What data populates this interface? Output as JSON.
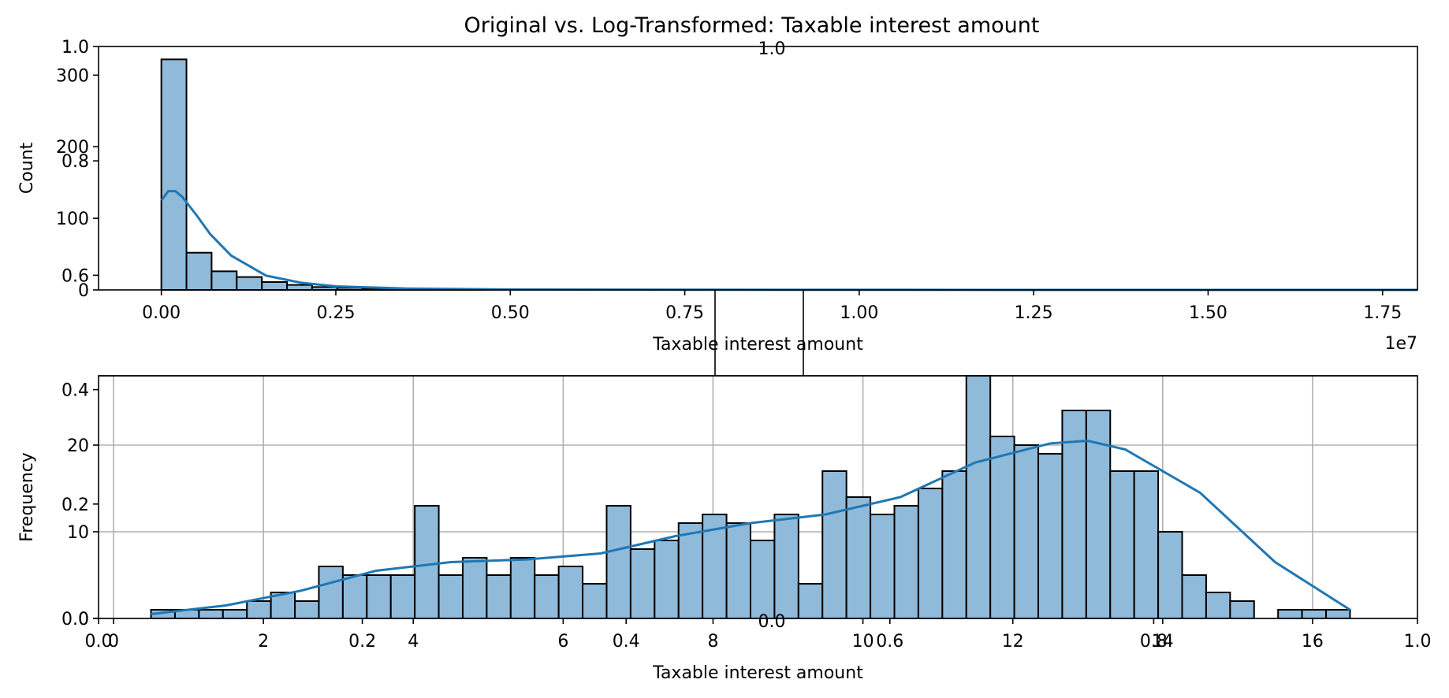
{
  "chart_data": [
    {
      "type": "bar",
      "panel": "top",
      "title": "Original vs. Log-Transformed: Taxable interest amount",
      "xlabel": "Taxable interest amount",
      "ylabel": "Count",
      "x_offset_label": "1e7",
      "xlim": [
        -0.09,
        1.8
      ],
      "ylim": [
        0,
        340
      ],
      "x_ticks": [
        0.0,
        0.25,
        0.5,
        0.75,
        1.0,
        1.25,
        1.5,
        1.75
      ],
      "x_tick_labels": [
        "0.00",
        "0.25",
        "0.50",
        "0.75",
        "1.00",
        "1.25",
        "1.50",
        "1.75"
      ],
      "y_ticks": [
        0,
        100,
        200,
        300
      ],
      "y_tick_labels": [
        "0",
        "100",
        "200",
        "300"
      ],
      "bin_edges": [
        0.0,
        0.036,
        0.072,
        0.108,
        0.144,
        0.18,
        0.216,
        0.252,
        0.288,
        0.324,
        0.36,
        0.396,
        0.432,
        0.468,
        0.504,
        0.54,
        0.576,
        0.612,
        0.648,
        0.684,
        0.72,
        0.756,
        0.792,
        0.828,
        0.864,
        0.9,
        0.936,
        0.972,
        1.008,
        1.044,
        1.08,
        1.116,
        1.152,
        1.188,
        1.224,
        1.26,
        1.296,
        1.332,
        1.368,
        1.404,
        1.44,
        1.476,
        1.512,
        1.548,
        1.584,
        1.62,
        1.656,
        1.692,
        1.728,
        1.764,
        1.8
      ],
      "values": [
        322,
        52,
        26,
        18,
        11,
        7,
        4,
        3,
        2,
        2,
        1,
        1,
        1,
        1,
        0,
        0,
        0,
        0,
        0,
        0,
        0,
        0,
        0,
        0,
        0,
        0,
        0,
        0,
        0,
        0,
        0,
        0,
        0,
        0,
        0,
        0,
        0,
        0,
        0,
        0,
        0,
        0,
        0,
        0,
        0,
        0,
        0,
        0,
        0,
        0
      ],
      "kde": {
        "x": [
          0.0,
          0.01,
          0.02,
          0.03,
          0.05,
          0.07,
          0.1,
          0.15,
          0.2,
          0.25,
          0.35,
          0.5,
          0.75,
          1.0,
          1.25,
          1.5,
          1.8
        ],
        "y": [
          125,
          138,
          138,
          130,
          105,
          78,
          48,
          20,
          10,
          5,
          2,
          0.5,
          0.2,
          0.1,
          0,
          0,
          0
        ]
      }
    },
    {
      "type": "bar",
      "panel": "bottom",
      "xlabel": "Taxable interest amount",
      "ylabel": "Frequency",
      "xlim": [
        -0.2,
        17.4
      ],
      "ylim": [
        0,
        28
      ],
      "x_ticks": [
        0,
        2,
        4,
        6,
        8,
        10,
        12,
        14,
        16
      ],
      "x_tick_labels": [
        "0",
        "2",
        "4",
        "6",
        "8",
        "10",
        "12",
        "14",
        "16"
      ],
      "y_ticks": [
        0,
        10,
        20
      ],
      "y_tick_labels": [
        "0",
        "10",
        "20"
      ],
      "bin_edges": [
        0.5,
        0.82,
        1.14,
        1.46,
        1.78,
        2.1,
        2.42,
        2.74,
        3.06,
        3.38,
        3.7,
        4.02,
        4.34,
        4.66,
        4.98,
        5.3,
        5.62,
        5.94,
        6.26,
        6.58,
        6.9,
        7.22,
        7.54,
        7.86,
        8.18,
        8.5,
        8.82,
        9.14,
        9.46,
        9.78,
        10.1,
        10.42,
        10.74,
        11.06,
        11.38,
        11.7,
        12.02,
        12.34,
        12.66,
        12.98,
        13.3,
        13.62,
        13.94,
        14.26,
        14.58,
        14.9,
        15.22,
        15.54,
        15.86,
        16.18,
        16.5
      ],
      "values": [
        1,
        1,
        1,
        1,
        2,
        3,
        2,
        6,
        5,
        5,
        5,
        13,
        5,
        7,
        5,
        7,
        5,
        6,
        4,
        13,
        8,
        9,
        11,
        12,
        11,
        9,
        12,
        4,
        17,
        14,
        12,
        13,
        15,
        17,
        28,
        21,
        20,
        19,
        24,
        24,
        17,
        17,
        10,
        5,
        3,
        2,
        0,
        1,
        1,
        1
      ],
      "kde": {
        "x": [
          0.5,
          1.5,
          2.5,
          3.5,
          4.5,
          5.5,
          6.5,
          7.5,
          8.5,
          9.5,
          10.5,
          11.5,
          12.5,
          13.0,
          13.5,
          14.5,
          15.5,
          16.5
        ],
        "y": [
          0.5,
          1.5,
          3.2,
          5.5,
          6.5,
          6.8,
          7.5,
          9.5,
          11,
          12,
          14,
          18,
          20.2,
          20.5,
          19.5,
          14.5,
          6.5,
          1
        ]
      }
    }
  ],
  "overlay": {
    "y_ticks": [
      "0.0",
      "0.2",
      "0.4",
      "0.6",
      "0.8",
      "1.0"
    ],
    "x_ticks": [
      "0.0",
      "0.2",
      "0.4",
      "0.6",
      "0.8",
      "1.0"
    ],
    "center_top_label": "1.0",
    "center_bottom_label": "0.0"
  }
}
